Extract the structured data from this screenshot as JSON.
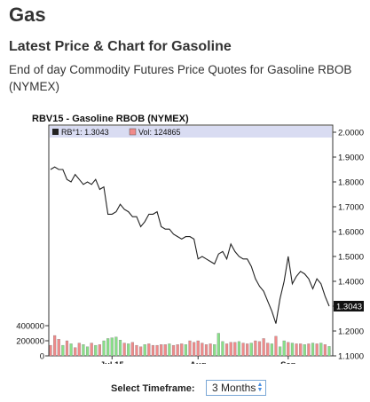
{
  "page": {
    "title": "Gas",
    "section_title": "Latest Price & Chart for Gasoline",
    "description_line1": "End of day Commodity Futures Price Quotes for Gasoline RBOB",
    "description_line2": "(NYMEX)"
  },
  "timeframe": {
    "label": "Select Timeframe:",
    "selected": "3 Months"
  },
  "colors": {
    "price_line": "#222222",
    "volume_up": "#88e088",
    "volume_down": "#f08a8a",
    "legend_bg": "#d9dcf2",
    "axis": "#333333"
  },
  "chart_data": {
    "type": "line",
    "title": "RBV15 - Gasoline RBOB (NYMEX)",
    "legend": [
      {
        "name": "RB°1: 1.3043",
        "color": "#222222"
      },
      {
        "name": "Vol: 124865",
        "color": "#f08a8a"
      }
    ],
    "last_price_label": "1.3043",
    "price_axis": {
      "ylim": [
        1.1,
        2.0
      ],
      "ticks": [
        "2.0000",
        "1.9000",
        "1.8000",
        "1.7000",
        "1.6000",
        "1.5000",
        "1.4000",
        "1.3000",
        "1.2000",
        "1.1000"
      ]
    },
    "volume_axis": {
      "ylim": [
        0,
        400000
      ],
      "ticks": [
        "400000",
        "200000",
        "0"
      ]
    },
    "x_ticks": [
      {
        "label": "Jul 15",
        "index": 15
      },
      {
        "label": "Aug",
        "index": 36
      },
      {
        "label": "Sep",
        "index": 58
      }
    ],
    "price": [
      1.85,
      1.86,
      1.85,
      1.85,
      1.81,
      1.8,
      1.83,
      1.81,
      1.79,
      1.8,
      1.79,
      1.81,
      1.77,
      1.78,
      1.67,
      1.67,
      1.68,
      1.71,
      1.69,
      1.68,
      1.66,
      1.66,
      1.62,
      1.64,
      1.67,
      1.67,
      1.68,
      1.62,
      1.61,
      1.61,
      1.59,
      1.58,
      1.57,
      1.58,
      1.58,
      1.57,
      1.49,
      1.5,
      1.49,
      1.48,
      1.47,
      1.51,
      1.52,
      1.49,
      1.55,
      1.52,
      1.5,
      1.49,
      1.49,
      1.46,
      1.41,
      1.38,
      1.36,
      1.32,
      1.28,
      1.23,
      1.33,
      1.4,
      1.5,
      1.39,
      1.42,
      1.44,
      1.43,
      1.41,
      1.37,
      1.41,
      1.39,
      1.34,
      1.3
    ],
    "volume": [
      140000,
      270000,
      220000,
      140000,
      200000,
      160000,
      110000,
      170000,
      150000,
      120000,
      170000,
      140000,
      150000,
      200000,
      230000,
      240000,
      250000,
      210000,
      170000,
      160000,
      180000,
      140000,
      120000,
      150000,
      160000,
      140000,
      140000,
      150000,
      150000,
      160000,
      140000,
      150000,
      160000,
      150000,
      200000,
      180000,
      200000,
      170000,
      150000,
      160000,
      150000,
      300000,
      190000,
      160000,
      180000,
      180000,
      190000,
      170000,
      160000,
      170000,
      200000,
      190000,
      230000,
      170000,
      160000,
      260000,
      120000,
      200000,
      180000,
      170000,
      160000,
      160000,
      150000,
      160000,
      170000,
      160000,
      170000,
      150000,
      125000
    ],
    "volume_up": [
      false,
      false,
      false,
      true,
      false,
      true,
      false,
      false,
      true,
      true,
      false,
      true,
      false,
      true,
      true,
      true,
      true,
      true,
      false,
      true,
      false,
      false,
      false,
      true,
      false,
      false,
      false,
      false,
      false,
      true,
      false,
      false,
      false,
      true,
      false,
      false,
      false,
      false,
      false,
      false,
      true,
      true,
      true,
      false,
      false,
      false,
      true,
      false,
      false,
      true,
      false,
      false,
      false,
      false,
      true,
      false,
      true,
      true,
      false,
      true,
      false,
      false,
      true,
      false,
      true,
      false,
      true,
      false,
      true
    ]
  }
}
